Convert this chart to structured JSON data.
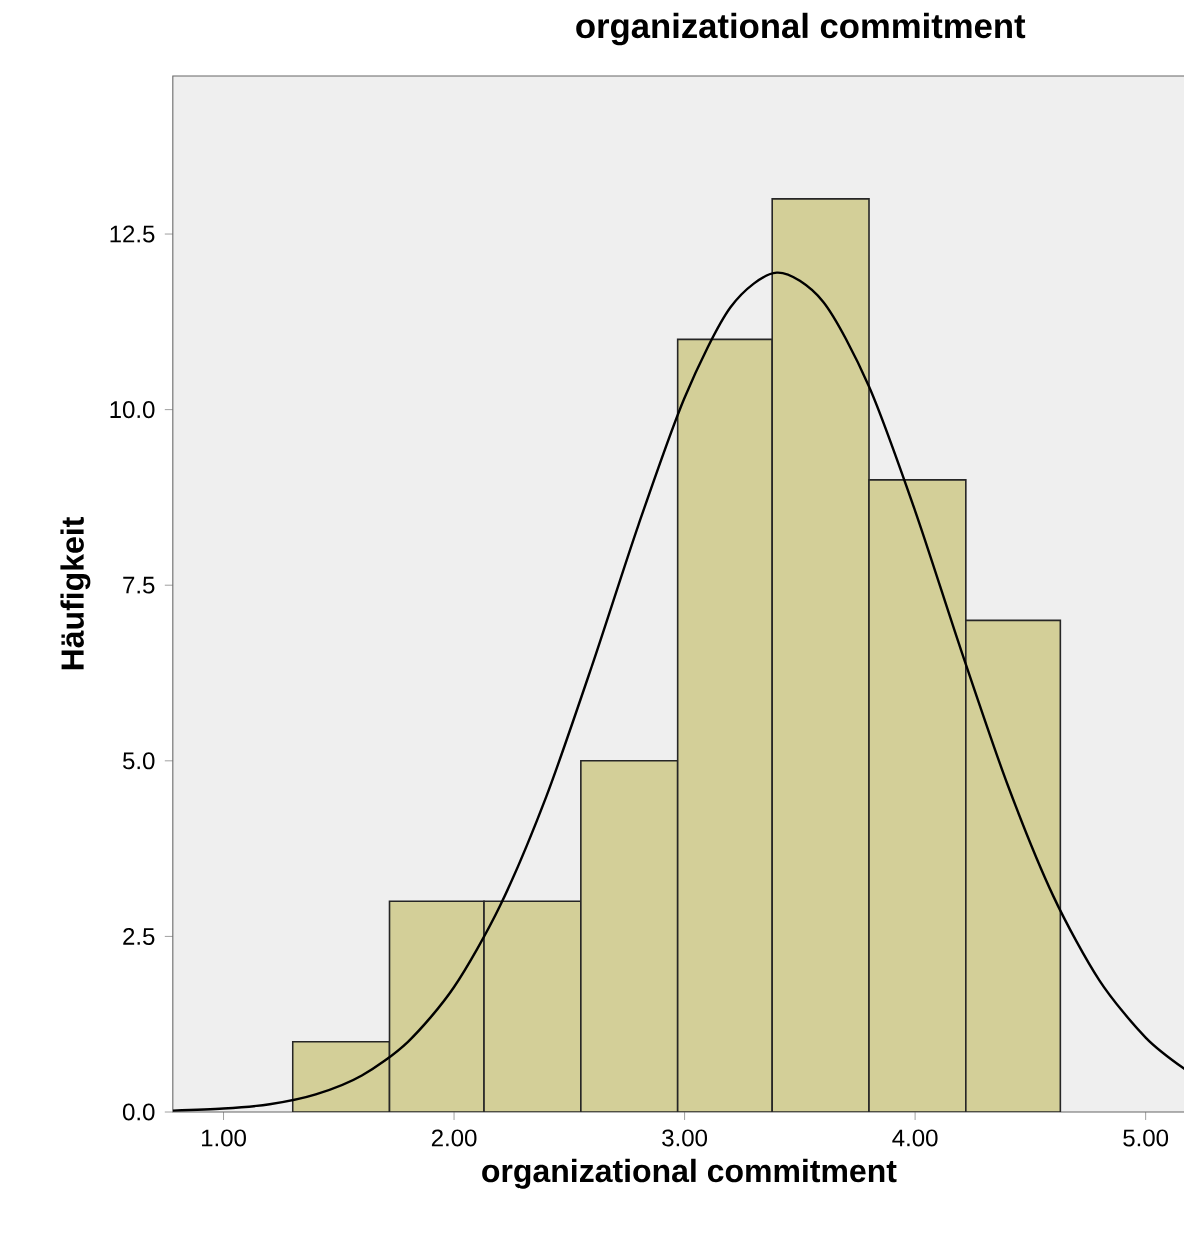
{
  "chart_data": {
    "type": "histogram",
    "title": "organizational commitment",
    "xlabel": "organizational commitment",
    "ylabel": "Häufigkeit",
    "bins": [
      1.3,
      1.72,
      2.13,
      2.55,
      2.97,
      3.38,
      3.8,
      4.22,
      4.63
    ],
    "values": [
      1,
      3,
      3,
      5,
      11,
      13,
      9,
      7
    ],
    "color": "#d3cf98",
    "series": [
      {
        "type": "line",
        "color": "#000000",
        "x": [
          0.78,
          1.0,
          1.2,
          1.4,
          1.6,
          1.8,
          2.0,
          2.2,
          2.4,
          2.6,
          2.8,
          3.0,
          3.2,
          3.4,
          3.6,
          3.8,
          4.0,
          4.2,
          4.4,
          4.6,
          4.8,
          5.0,
          5.17
        ],
        "values": [
          0.02,
          0.05,
          0.11,
          0.25,
          0.52,
          1.0,
          1.78,
          2.94,
          4.49,
          6.37,
          8.36,
          10.17,
          11.46,
          11.95,
          11.54,
          10.33,
          8.56,
          6.57,
          4.67,
          3.07,
          1.87,
          1.06,
          0.61
        ]
      }
    ],
    "xlim": [
      0.78,
      5.17
    ],
    "ylim": [
      0,
      14.75
    ],
    "xticks": [
      {
        "value": 1,
        "label": "1.00"
      },
      {
        "value": 2,
        "label": "2.00"
      },
      {
        "value": 3,
        "label": "3.00"
      },
      {
        "value": 4,
        "label": "4.00"
      },
      {
        "value": 5,
        "label": "5.00"
      }
    ],
    "yticks": [
      {
        "value": 0,
        "label": "0.0"
      },
      {
        "value": 2.5,
        "label": "2.5"
      },
      {
        "value": 5,
        "label": "5.0"
      },
      {
        "value": 7.5,
        "label": "7.5"
      },
      {
        "value": 10,
        "label": "10.0"
      },
      {
        "value": 12.5,
        "label": "12.5"
      }
    ],
    "grid": false
  }
}
